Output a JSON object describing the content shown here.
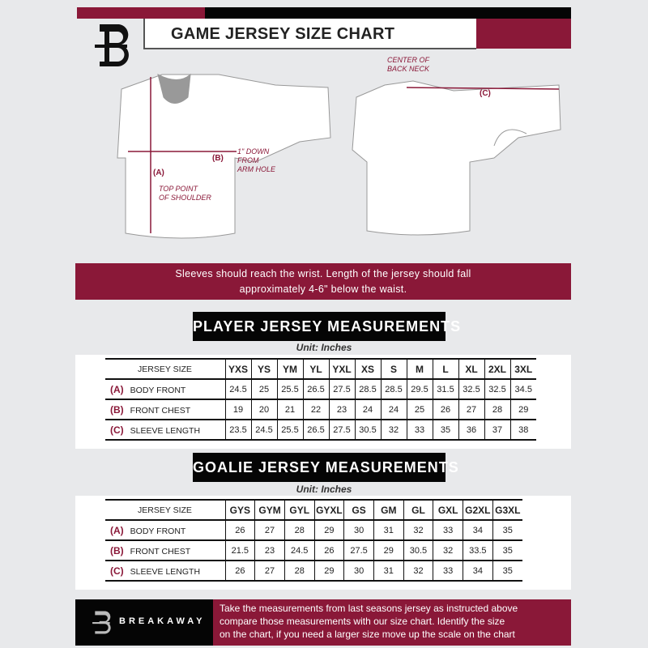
{
  "header": {
    "title": "GAME JERSEY SIZE CHART",
    "brand_initial": "B"
  },
  "colors": {
    "accent": "#8a1838",
    "dark": "#050505",
    "background": "#e8e9eb"
  },
  "diagram": {
    "label_a": "(A)",
    "label_b": "(B)",
    "label_c": "(C)",
    "top_point_1": "TOP POINT",
    "top_point_2": "OF SHOULDER",
    "down_1": "1\" DOWN",
    "down_2": "FROM",
    "down_3": "ARM HOLE",
    "center_1": "CENTER OF",
    "center_2": "BACK NECK"
  },
  "note": {
    "line1": "Sleeves should reach the wrist. Length of the jersey should fall",
    "line2": "approximately 4-6\" below the waist."
  },
  "player": {
    "title": "PLAYER JERSEY MEASUREMENTS",
    "unit": "Unit: Inches",
    "size_label": "JERSEY SIZE",
    "sizes": [
      "YXS",
      "YS",
      "YM",
      "YL",
      "YXL",
      "XS",
      "S",
      "M",
      "L",
      "XL",
      "2XL",
      "3XL"
    ],
    "rows": [
      {
        "code": "(A)",
        "label": "BODY FRONT",
        "values": [
          "24.5",
          "25",
          "25.5",
          "26.5",
          "27.5",
          "28.5",
          "28.5",
          "29.5",
          "31.5",
          "32.5",
          "32.5",
          "34.5"
        ]
      },
      {
        "code": "(B)",
        "label": "FRONT CHEST",
        "values": [
          "19",
          "20",
          "21",
          "22",
          "23",
          "24",
          "24",
          "25",
          "26",
          "27",
          "28",
          "29"
        ]
      },
      {
        "code": "(C)",
        "label": "SLEEVE LENGTH",
        "values": [
          "23.5",
          "24.5",
          "25.5",
          "26.5",
          "27.5",
          "30.5",
          "32",
          "33",
          "35",
          "36",
          "37",
          "38"
        ]
      }
    ]
  },
  "goalie": {
    "title": "GOALIE JERSEY MEASUREMENTS",
    "unit": "Unit: Inches",
    "size_label": "JERSEY SIZE",
    "sizes": [
      "GYS",
      "GYM",
      "GYL",
      "GYXL",
      "GS",
      "GM",
      "GL",
      "GXL",
      "G2XL",
      "G3XL"
    ],
    "rows": [
      {
        "code": "(A)",
        "label": "BODY FRONT",
        "values": [
          "26",
          "27",
          "28",
          "29",
          "30",
          "31",
          "32",
          "33",
          "34",
          "35"
        ]
      },
      {
        "code": "(B)",
        "label": "FRONT CHEST",
        "values": [
          "21.5",
          "23",
          "24.5",
          "26",
          "27.5",
          "29",
          "30.5",
          "32",
          "33.5",
          "35"
        ]
      },
      {
        "code": "(C)",
        "label": "SLEEVE LENGTH",
        "values": [
          "26",
          "27",
          "28",
          "29",
          "30",
          "31",
          "32",
          "33",
          "34",
          "35"
        ]
      }
    ]
  },
  "footer": {
    "brand": "BREAKAWAY",
    "line1": "Take the measurements from last seasons jersey as instructed above",
    "line2": "compare those measurements  with our size chart. Identify the size",
    "line3": "on the chart, if you need a larger size move up the scale on the chart"
  }
}
